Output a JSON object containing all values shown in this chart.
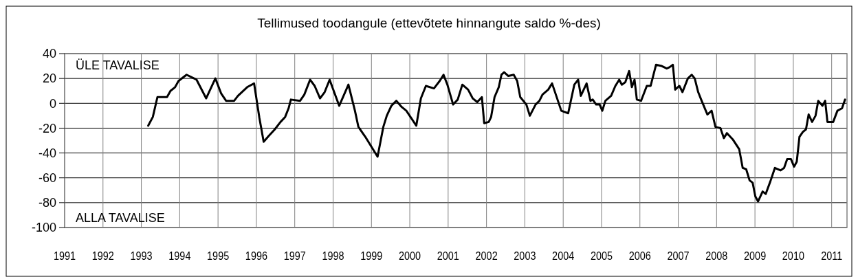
{
  "chart_data": {
    "type": "line",
    "title": "Tellimused toodangule (ettevõtete hinnangute saldo %-des)",
    "annotations": [
      "ÜLE TAVALISE",
      "ALLA TAVALISE"
    ],
    "series": [
      {
        "color": "#000000",
        "x": [
          1993.18,
          1993.3,
          1993.42,
          1993.67,
          1993.76,
          1993.88,
          1993.97,
          1994.18,
          1994.44,
          1994.69,
          1994.93,
          1995.08,
          1995.21,
          1995.42,
          1995.52,
          1995.76,
          1995.94,
          1996.08,
          1996.19,
          1996.33,
          1996.48,
          1996.63,
          1996.75,
          1996.84,
          1996.9,
          1997.14,
          1997.25,
          1997.4,
          1997.52,
          1997.66,
          1997.78,
          1997.91,
          1998.16,
          1998.4,
          1998.57,
          1998.66,
          1998.84,
          1999.16,
          1999.31,
          1999.4,
          1999.52,
          1999.65,
          1999.79,
          1999.91,
          2000.17,
          2000.29,
          2000.42,
          2000.63,
          2000.78,
          2000.88,
          2000.98,
          2001.13,
          2001.25,
          2001.37,
          2001.52,
          2001.64,
          2001.76,
          2001.88,
          2001.94,
          2002.06,
          2002.12,
          2002.21,
          2002.32,
          2002.39,
          2002.46,
          2002.57,
          2002.71,
          2002.8,
          2002.88,
          2003.04,
          2003.13,
          2003.28,
          2003.38,
          2003.46,
          2003.61,
          2003.71,
          2003.95,
          2004.13,
          2004.29,
          2004.39,
          2004.46,
          2004.61,
          2004.71,
          2004.77,
          2004.86,
          2004.95,
          2005.02,
          2005.1,
          2005.25,
          2005.36,
          2005.46,
          2005.53,
          2005.62,
          2005.72,
          2005.79,
          2005.86,
          2005.92,
          2006.03,
          2006.18,
          2006.28,
          2006.42,
          2006.57,
          2006.7,
          2006.77,
          2006.86,
          2006.92,
          2007.03,
          2007.11,
          2007.25,
          2007.35,
          2007.43,
          2007.52,
          2007.61,
          2007.76,
          2007.87,
          2007.97,
          2008.1,
          2008.19,
          2008.27,
          2008.42,
          2008.59,
          2008.68,
          2008.77,
          2008.86,
          2008.94,
          2009.01,
          2009.08,
          2009.2,
          2009.28,
          2009.4,
          2009.52,
          2009.67,
          2009.76,
          2009.84,
          2009.94,
          2010.02,
          2010.09,
          2010.16,
          2010.25,
          2010.33,
          2010.4,
          2010.49,
          2010.58,
          2010.65,
          2010.76,
          2010.83,
          2010.89,
          2011.04,
          2011.15,
          2011.27,
          2011.35
        ],
        "values": [
          -18,
          -11,
          5,
          5,
          10,
          13,
          18,
          23,
          19,
          4,
          20,
          8,
          2,
          2,
          6,
          13,
          16,
          -12,
          -31,
          -26,
          -21,
          -15,
          -11,
          -4,
          3,
          2,
          7,
          19,
          14,
          4,
          9,
          19,
          -2,
          15,
          -6,
          -19,
          -27,
          -43,
          -19,
          -10,
          -2,
          2,
          -3,
          -6,
          -18,
          4,
          14,
          12,
          18,
          23,
          15,
          -1,
          3,
          15,
          11,
          4,
          1,
          5,
          -16,
          -15,
          -11,
          5,
          13,
          23,
          25,
          22,
          23,
          18,
          5,
          -1,
          -10,
          -1,
          2,
          7,
          11,
          16,
          -6,
          -8,
          15,
          19,
          6,
          16,
          2,
          3,
          -1,
          -1,
          -6,
          2,
          6,
          14,
          19,
          15,
          17,
          26,
          13,
          19,
          3,
          2,
          14,
          14,
          31,
          30,
          28,
          29,
          31,
          11,
          14,
          9,
          20,
          23,
          20,
          9,
          2,
          -9,
          -6,
          -19,
          -20,
          -28,
          -24,
          -29,
          -37,
          -52,
          -53,
          -62,
          -64,
          -75,
          -79,
          -71,
          -73,
          -63,
          -52,
          -54,
          -52,
          -45,
          -45,
          -51,
          -47,
          -27,
          -23,
          -21,
          -9,
          -15,
          -10,
          2,
          -2,
          2,
          -15,
          -15,
          -6,
          -4,
          3
        ]
      }
    ],
    "xlim": [
      1991,
      2011.4
    ],
    "ylim": [
      -100,
      40
    ],
    "xticks": [
      1991,
      1992,
      1993,
      1994,
      1995,
      1996,
      1997,
      1998,
      1999,
      2000,
      2001,
      2002,
      2003,
      2004,
      2005,
      2006,
      2007,
      2008,
      2009,
      2010,
      2011
    ],
    "yticks": [
      -100,
      -80,
      -60,
      -40,
      -20,
      0,
      20,
      40
    ],
    "grid": true,
    "marker": "none",
    "line_style": "solid"
  }
}
